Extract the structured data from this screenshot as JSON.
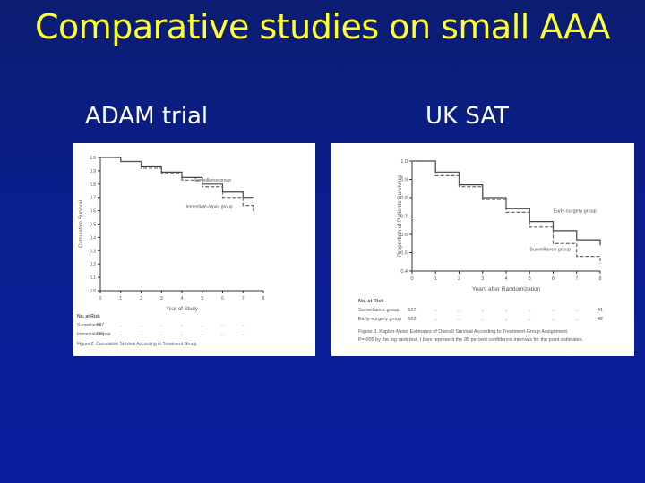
{
  "slide": {
    "title": "Comparative studies on small AAA",
    "left_heading": "ADAM trial",
    "right_heading": "UK SAT"
  },
  "colors": {
    "title": "#ffff33",
    "background": "#0a1fa0",
    "text": "#ffffff"
  },
  "chart_data": [
    {
      "type": "line",
      "ylabel": "Cumulative Survival",
      "xlabel": "Year of Study",
      "xlim": [
        0,
        8
      ],
      "ylim": [
        0,
        1.0
      ],
      "x_ticks": [
        "0",
        "1",
        "2",
        "3",
        "4",
        "5",
        "6",
        "7",
        "8"
      ],
      "y_ticks": [
        "0.0",
        "0.1",
        "0.2",
        "0.3",
        "0.4",
        "0.5",
        "0.6",
        "0.7",
        "0.8",
        "0.9",
        "1.0"
      ],
      "series": [
        {
          "name": "Surveillance group",
          "x": [
            0,
            1,
            2,
            3,
            4,
            5,
            6,
            7,
            7.5
          ],
          "y": [
            1.0,
            0.97,
            0.93,
            0.89,
            0.85,
            0.8,
            0.74,
            0.7,
            0.7
          ]
        },
        {
          "name": "Immediate-repair group",
          "x": [
            0,
            1,
            2,
            3,
            4,
            5,
            6,
            7,
            7.5
          ],
          "y": [
            1.0,
            0.97,
            0.92,
            0.88,
            0.83,
            0.78,
            0.7,
            0.64,
            0.6
          ]
        }
      ],
      "risk_table_label": "No. at Risk",
      "risk_table": [
        {
          "name": "Surveillance",
          "values": [
            "567",
            "..",
            "..",
            "..",
            "..",
            "..",
            "..",
            ".."
          ]
        },
        {
          "name": "Immediate repair",
          "values": [
            "569",
            "..",
            "..",
            "..",
            "..",
            "..",
            "..",
            ".."
          ]
        }
      ],
      "caption": "Figure 2. Cumulative Survival According to Treatment Group."
    },
    {
      "type": "line",
      "ylabel": "Proportion of Patients Surviving",
      "xlabel": "Years after Randomization",
      "xlim": [
        0,
        8
      ],
      "ylim": [
        0.4,
        1.0
      ],
      "x_ticks": [
        "0",
        "1",
        "2",
        "3",
        "4",
        "5",
        "6",
        "7",
        "8"
      ],
      "y_ticks": [
        "0.4",
        "0.5",
        "0.6",
        "0.7",
        "0.8",
        "0.9",
        "1.0"
      ],
      "series": [
        {
          "name": "Early-surgery group",
          "x": [
            0,
            1,
            2,
            3,
            4,
            5,
            6,
            7,
            8
          ],
          "y": [
            1.0,
            0.94,
            0.87,
            0.8,
            0.74,
            0.67,
            0.62,
            0.57,
            0.54
          ]
        },
        {
          "name": "Surveillance group",
          "x": [
            0,
            1,
            2,
            3,
            4,
            5,
            6,
            7,
            8
          ],
          "y": [
            1.0,
            0.92,
            0.86,
            0.79,
            0.72,
            0.64,
            0.55,
            0.48,
            0.44
          ]
        }
      ],
      "risk_table_label": "No. at Risk",
      "risk_table": [
        {
          "name": "Surveillance group",
          "values": [
            "527",
            "..",
            "..",
            "..",
            "..",
            "..",
            "..",
            "..",
            "41"
          ]
        },
        {
          "name": "Early-surgery group",
          "values": [
            "563",
            "..",
            "..",
            "..",
            "..",
            "..",
            "..",
            "..",
            "42"
          ]
        }
      ],
      "caption": "Figure 3. Kaplan-Meier Estimates of Overall Survival According to Treatment-Group Assignment.",
      "caption2": "P=.005 by the log rank test. I bars represent the 95 percent confidence intervals for the point estimates."
    }
  ]
}
